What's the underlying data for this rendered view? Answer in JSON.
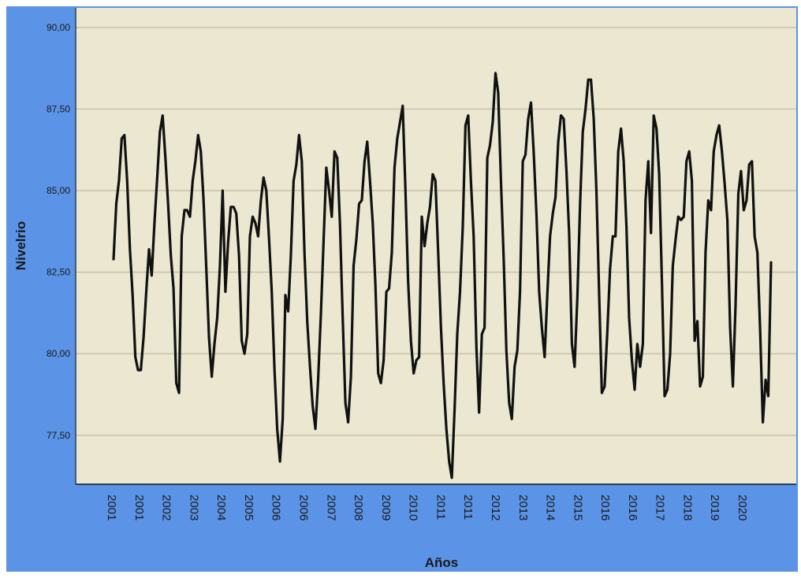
{
  "chart_data": {
    "type": "line",
    "title": "",
    "xlabel": "Años",
    "ylabel": "Nivelrio",
    "ylim": [
      76.0,
      90.6
    ],
    "grid": true,
    "yticks": [
      {
        "value": 90.0,
        "label": "90,00"
      },
      {
        "value": 87.5,
        "label": "87,50"
      },
      {
        "value": 85.0,
        "label": "85,00"
      },
      {
        "value": 82.5,
        "label": "82,50"
      },
      {
        "value": 80.0,
        "label": "80,00"
      },
      {
        "value": 77.5,
        "label": "77,50"
      }
    ],
    "xticks": [
      "2001",
      "2001",
      "2002",
      "2003",
      "2004",
      "2005",
      "2006",
      "2006",
      "2007",
      "2008",
      "2009",
      "2010",
      "2011",
      "2011",
      "2012",
      "2013",
      "2014",
      "2015",
      "2016",
      "2016",
      "2017",
      "2018",
      "2019",
      "2020"
    ],
    "series": [
      {
        "values": [
          82.9,
          84.6,
          85.3,
          86.6,
          86.7,
          85.3,
          83.2,
          81.8,
          79.9,
          79.5,
          79.5,
          80.5,
          81.9,
          83.2,
          82.4,
          84.0,
          85.4,
          86.8,
          87.3,
          86.0,
          84.6,
          83.0,
          82.0,
          79.1,
          78.8,
          83.6,
          84.4,
          84.4,
          84.2,
          85.3,
          85.9,
          86.7,
          86.2,
          84.7,
          82.6,
          80.5,
          79.3,
          80.3,
          81.1,
          82.7,
          85.0,
          81.9,
          83.4,
          84.5,
          84.5,
          84.3,
          83.0,
          80.4,
          80.0,
          80.6,
          83.6,
          84.2,
          84.0,
          83.6,
          84.7,
          85.4,
          85.0,
          83.5,
          81.9,
          79.5,
          77.7,
          76.7,
          78.0,
          81.8,
          81.3,
          83.0,
          85.3,
          85.8,
          86.7,
          85.9,
          83.1,
          81.0,
          79.6,
          78.4,
          77.7,
          79.2,
          81.2,
          83.5,
          85.7,
          85.0,
          84.2,
          86.2,
          86.0,
          84.0,
          81.1,
          78.5,
          77.9,
          79.3,
          82.7,
          83.5,
          84.6,
          84.7,
          85.9,
          86.5,
          85.3,
          84.0,
          82.1,
          79.4,
          79.1,
          79.8,
          81.9,
          82.0,
          83.1,
          85.7,
          86.6,
          87.1,
          87.6,
          85.0,
          82.2,
          80.4,
          79.4,
          79.8,
          79.9,
          84.2,
          83.3,
          84.0,
          84.5,
          85.5,
          85.3,
          83.1,
          80.8,
          79.1,
          77.7,
          76.7,
          76.2,
          78.3,
          80.6,
          81.9,
          83.9,
          87.0,
          87.3,
          85.3,
          83.6,
          80.2,
          78.2,
          80.6,
          80.8,
          86.0,
          86.4,
          87.1,
          88.6,
          88.0,
          85.3,
          82.9,
          80.1,
          78.5,
          78.0,
          79.6,
          80.1,
          81.9,
          85.9,
          86.1,
          87.2,
          87.7,
          86.2,
          84.3,
          81.9,
          80.8,
          79.9,
          81.8,
          83.6,
          84.3,
          84.8,
          86.5,
          87.3,
          87.2,
          85.6,
          83.7,
          80.3,
          79.6,
          81.7,
          84.6,
          86.8,
          87.5,
          88.4,
          88.4,
          87.2,
          85.0,
          81.8,
          78.8,
          79.0,
          80.7,
          82.6,
          83.6,
          83.6,
          86.2,
          86.9,
          85.9,
          83.9,
          81.1,
          79.8,
          78.9,
          80.3,
          79.6,
          80.3,
          84.7,
          85.9,
          83.7,
          87.3,
          86.9,
          85.5,
          82.2,
          78.7,
          78.9,
          80.0,
          82.7,
          83.5,
          84.2,
          84.1,
          84.2,
          85.9,
          86.2,
          85.3,
          80.4,
          81.0,
          79.0,
          79.3,
          83.1,
          84.7,
          84.4,
          86.2,
          86.7,
          87.0,
          86.2,
          85.2,
          84.1,
          80.8,
          79.0,
          81.5,
          84.9,
          85.6,
          84.4,
          84.7,
          85.8,
          85.9,
          83.6,
          83.1,
          80.7,
          77.9,
          79.2,
          78.7,
          82.8
        ]
      }
    ]
  }
}
